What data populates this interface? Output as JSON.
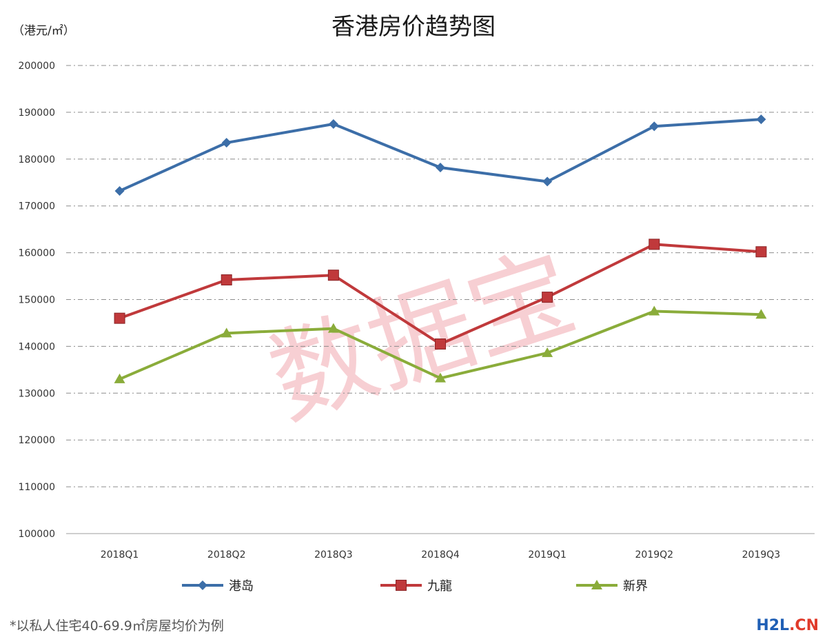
{
  "title": "香港房价趋势图",
  "unit_label": "（港元/㎡）",
  "footnote": "*以私人住宅40-69.9㎡房屋均价为例",
  "watermark": "数据宝",
  "site_logo": {
    "prefix": "H2L",
    "suffix": ".CN",
    "prefix_color": "#1f5fb5",
    "suffix_color": "#e03a2a"
  },
  "chart_data": {
    "type": "line",
    "title": "香港房价趋势图",
    "ylabel": "（港元/㎡）",
    "xlabel": "",
    "categories": [
      "2018Q1",
      "2018Q2",
      "2018Q3",
      "2018Q4",
      "2019Q1",
      "2019Q2",
      "2019Q3"
    ],
    "ylim": [
      100000,
      200000
    ],
    "yticks": [
      "100000",
      "110000",
      "120000",
      "130000",
      "140000",
      "150000",
      "160000",
      "170000",
      "180000",
      "190000",
      "200000"
    ],
    "grid": true,
    "legend_position": "bottom",
    "series": [
      {
        "name": "港岛",
        "marker": "diamond",
        "color": "#3c6ea8",
        "values": [
          173200,
          183500,
          187500,
          178200,
          175200,
          187000,
          188500
        ]
      },
      {
        "name": "九龍",
        "marker": "square",
        "color": "#c0393b",
        "values": [
          146000,
          154200,
          155200,
          140500,
          150500,
          161800,
          160200
        ]
      },
      {
        "name": "新界",
        "marker": "triangle",
        "color": "#8aac3a",
        "values": [
          133000,
          142800,
          143800,
          133200,
          138600,
          147500,
          146800
        ]
      }
    ]
  }
}
